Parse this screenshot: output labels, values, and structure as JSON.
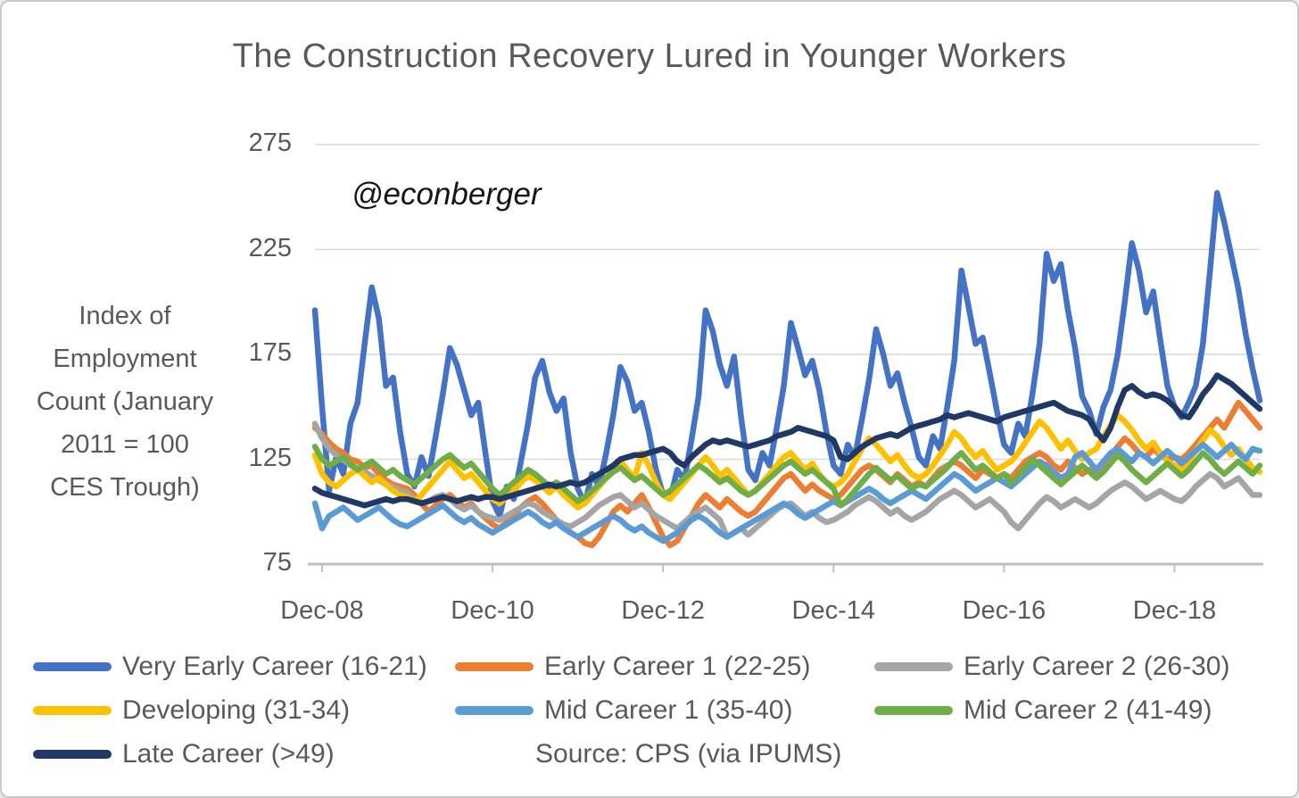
{
  "title": "The Construction Recovery Lured in Younger Workers",
  "watermark": "@econberger",
  "source": "Source: CPS (via IPUMS)",
  "y_axis": {
    "title_lines": [
      "Index of",
      "Employment",
      "Count (January",
      "2011 = 100",
      "CES Trough)"
    ],
    "ticks": [
      275,
      225,
      175,
      125,
      75
    ]
  },
  "x_axis": {
    "tick_labels": [
      "Dec-08",
      "Dec-10",
      "Dec-12",
      "Dec-14",
      "Dec-16",
      "Dec-18"
    ],
    "tick_indices": [
      1,
      25,
      49,
      73,
      97,
      121
    ]
  },
  "colors": {
    "grid": "#d9d9d9",
    "axis": "#bfbfbf",
    "text": "#595959"
  },
  "chart_data": {
    "type": "line",
    "title": "The Construction Recovery Lured in Younger Workers",
    "ylabel": "Index of Employment Count (January 2011 = 100 CES Trough)",
    "ylim": [
      75,
      275
    ],
    "grid": true,
    "legend_position": "bottom",
    "frequency": "monthly",
    "x_start": "Nov-2008",
    "x_end": "Dec-2019",
    "series": [
      {
        "name": "Very Early Career (16-21)",
        "color": "#4472C4",
        "values": [
          196,
          150,
          110,
          126,
          118,
          142,
          152,
          180,
          207,
          192,
          160,
          164,
          138,
          118,
          112,
          126,
          117,
          136,
          156,
          178,
          170,
          158,
          146,
          152,
          128,
          105,
          98,
          112,
          106,
          124,
          142,
          164,
          172,
          157,
          148,
          154,
          128,
          111,
          104,
          118,
          112,
          128,
          146,
          169,
          162,
          148,
          152,
          138,
          120,
          108,
          106,
          120,
          115,
          134,
          155,
          196,
          186,
          170,
          160,
          174,
          145,
          120,
          115,
          128,
          122,
          140,
          160,
          190,
          178,
          165,
          172,
          158,
          138,
          122,
          118,
          132,
          126,
          144,
          163,
          187,
          175,
          160,
          166,
          152,
          140,
          126,
          122,
          136,
          130,
          150,
          172,
          215,
          198,
          180,
          183,
          166,
          148,
          132,
          128,
          142,
          136,
          156,
          180,
          223,
          210,
          218,
          196,
          178,
          155,
          148,
          137,
          150,
          158,
          175,
          200,
          228,
          215,
          195,
          205,
          182,
          160,
          150,
          145,
          152,
          160,
          180,
          215,
          252,
          238,
          222,
          206,
          185,
          168,
          153
        ]
      },
      {
        "name": "Early Career 1 (22-25)",
        "color": "#ED7D31",
        "values": [
          140,
          137,
          133,
          130,
          128,
          125,
          124,
          121,
          122,
          118,
          115,
          113,
          112,
          111,
          108,
          104,
          100,
          103,
          106,
          108,
          105,
          102,
          104,
          100,
          97,
          94,
          92,
          95,
          98,
          102,
          105,
          107,
          104,
          100,
          96,
          93,
          90,
          88,
          85,
          84,
          88,
          94,
          100,
          103,
          100,
          104,
          108,
          102,
          95,
          88,
          84,
          86,
          92,
          98,
          104,
          108,
          105,
          102,
          106,
          103,
          100,
          98,
          100,
          104,
          108,
          112,
          116,
          118,
          114,
          110,
          113,
          110,
          108,
          106,
          108,
          112,
          116,
          120,
          122,
          120,
          117,
          114,
          118,
          115,
          112,
          114,
          112,
          116,
          120,
          122,
          124,
          122,
          119,
          116,
          120,
          118,
          116,
          118,
          116,
          120,
          124,
          126,
          128,
          126,
          122,
          120,
          124,
          121,
          118,
          120,
          119,
          123,
          127,
          131,
          135,
          132,
          128,
          126,
          130,
          127,
          125,
          126,
          125,
          128,
          132,
          136,
          140,
          144,
          140,
          146,
          152,
          148,
          144,
          140
        ]
      },
      {
        "name": "Early Career 2 (26-30)",
        "color": "#A5A5A5",
        "values": [
          142,
          135,
          130,
          127,
          125,
          122,
          120,
          119,
          117,
          115,
          113,
          112,
          110,
          109,
          106,
          104,
          105,
          107,
          108,
          106,
          103,
          101,
          103,
          100,
          98,
          97,
          96,
          98,
          100,
          102,
          104,
          103,
          100,
          98,
          96,
          94,
          93,
          95,
          97,
          100,
          103,
          105,
          107,
          108,
          105,
          102,
          104,
          101,
          98,
          96,
          94,
          92,
          95,
          98,
          100,
          102,
          99,
          96,
          88,
          90,
          92,
          89,
          92,
          95,
          98,
          101,
          103,
          104,
          101,
          98,
          100,
          97,
          95,
          96,
          98,
          100,
          103,
          105,
          107,
          105,
          102,
          99,
          101,
          98,
          96,
          98,
          100,
          103,
          106,
          108,
          110,
          108,
          105,
          102,
          104,
          106,
          103,
          100,
          95,
          92,
          96,
          100,
          104,
          107,
          105,
          102,
          104,
          106,
          104,
          102,
          104,
          107,
          110,
          112,
          114,
          112,
          109,
          106,
          108,
          110,
          108,
          106,
          105,
          108,
          112,
          115,
          118,
          116,
          112,
          114,
          116,
          112,
          108,
          108
        ]
      },
      {
        "name": "Developing (31-34)",
        "color": "#FFC000",
        "values": [
          127,
          118,
          114,
          112,
          115,
          118,
          120,
          117,
          114,
          116,
          113,
          110,
          108,
          107,
          105,
          108,
          112,
          116,
          120,
          124,
          120,
          116,
          118,
          114,
          110,
          106,
          104,
          107,
          110,
          114,
          117,
          115,
          112,
          109,
          112,
          108,
          105,
          102,
          104,
          108,
          112,
          116,
          120,
          124,
          120,
          116,
          128,
          122,
          114,
          108,
          106,
          110,
          114,
          118,
          122,
          126,
          122,
          117,
          120,
          116,
          112,
          108,
          110,
          114,
          118,
          122,
          126,
          128,
          124,
          120,
          123,
          118,
          114,
          112,
          114,
          118,
          124,
          130,
          135,
          132,
          128,
          124,
          127,
          122,
          118,
          116,
          118,
          122,
          127,
          132,
          138,
          135,
          130,
          126,
          129,
          124,
          120,
          122,
          124,
          128,
          133,
          138,
          143,
          140,
          135,
          130,
          134,
          129,
          125,
          128,
          130,
          136,
          141,
          146,
          143,
          139,
          134,
          130,
          133,
          128,
          124,
          122,
          120,
          124,
          129,
          134,
          139,
          136,
          131,
          127,
          130,
          125,
          121,
          119
        ]
      },
      {
        "name": "Mid Career 1 (35-40)",
        "color": "#5B9BD5",
        "values": [
          104,
          92,
          98,
          100,
          102,
          99,
          96,
          98,
          100,
          102,
          99,
          96,
          94,
          93,
          95,
          97,
          99,
          101,
          103,
          100,
          97,
          95,
          97,
          94,
          92,
          90,
          92,
          94,
          96,
          98,
          100,
          98,
          95,
          93,
          95,
          92,
          90,
          88,
          90,
          92,
          94,
          96,
          98,
          96,
          93,
          91,
          93,
          90,
          88,
          86,
          88,
          90,
          93,
          96,
          98,
          96,
          93,
          90,
          88,
          90,
          92,
          94,
          96,
          98,
          100,
          102,
          104,
          102,
          99,
          97,
          99,
          101,
          103,
          105,
          103,
          105,
          107,
          109,
          111,
          109,
          106,
          104,
          106,
          108,
          110,
          108,
          106,
          109,
          112,
          115,
          118,
          116,
          113,
          110,
          112,
          114,
          116,
          114,
          112,
          115,
          118,
          121,
          124,
          122,
          119,
          116,
          118,
          126,
          128,
          124,
          120,
          124,
          128,
          130,
          127,
          124,
          128,
          126,
          123,
          126,
          129,
          126,
          123,
          126,
          129,
          132,
          129,
          126,
          129,
          132,
          128,
          125,
          130,
          129
        ]
      },
      {
        "name": "Mid Career 2 (41-49)",
        "color": "#70AD47",
        "values": [
          131,
          125,
          122,
          124,
          126,
          123,
          120,
          122,
          124,
          121,
          118,
          120,
          117,
          115,
          113,
          116,
          119,
          122,
          125,
          127,
          124,
          121,
          123,
          119,
          115,
          111,
          108,
          111,
          114,
          117,
          120,
          118,
          115,
          112,
          114,
          111,
          108,
          105,
          107,
          110,
          113,
          116,
          119,
          121,
          118,
          115,
          117,
          114,
          111,
          108,
          110,
          113,
          116,
          119,
          122,
          120,
          117,
          114,
          116,
          113,
          110,
          108,
          110,
          113,
          116,
          119,
          122,
          124,
          121,
          118,
          120,
          117,
          114,
          111,
          103,
          106,
          110,
          114,
          118,
          121,
          118,
          115,
          117,
          114,
          111,
          113,
          112,
          115,
          118,
          121,
          125,
          128,
          124,
          120,
          122,
          119,
          116,
          118,
          114,
          117,
          121,
          125,
          122,
          119,
          116,
          113,
          116,
          119,
          122,
          119,
          116,
          119,
          123,
          127,
          124,
          120,
          117,
          114,
          117,
          120,
          123,
          120,
          117,
          120,
          124,
          128,
          125,
          121,
          118,
          121,
          124,
          121,
          118,
          122
        ]
      },
      {
        "name": "Late Career (>49)",
        "color": "#1F3864",
        "values": [
          111,
          109,
          108,
          107,
          106,
          105,
          104,
          103,
          104,
          105,
          106,
          105,
          106,
          106,
          105,
          104,
          105,
          106,
          107,
          106,
          105,
          106,
          107,
          106,
          107,
          107,
          106,
          107,
          108,
          109,
          110,
          111,
          112,
          113,
          112,
          113,
          114,
          113,
          114,
          116,
          118,
          120,
          122,
          125,
          126,
          127,
          127,
          128,
          129,
          130,
          128,
          124,
          122,
          126,
          129,
          132,
          134,
          133,
          134,
          133,
          132,
          131,
          132,
          133,
          134,
          136,
          137,
          138,
          140,
          139,
          138,
          137,
          136,
          134,
          126,
          125,
          128,
          131,
          133,
          135,
          136,
          137,
          136,
          138,
          140,
          141,
          142,
          143,
          144,
          146,
          145,
          146,
          147,
          146,
          145,
          144,
          143,
          145,
          146,
          147,
          148,
          149,
          150,
          151,
          152,
          150,
          148,
          147,
          146,
          144,
          138,
          134,
          140,
          150,
          158,
          160,
          157,
          155,
          156,
          155,
          153,
          150,
          146,
          145,
          150,
          156,
          160,
          165,
          163,
          161,
          158,
          155,
          152,
          149
        ]
      }
    ]
  }
}
